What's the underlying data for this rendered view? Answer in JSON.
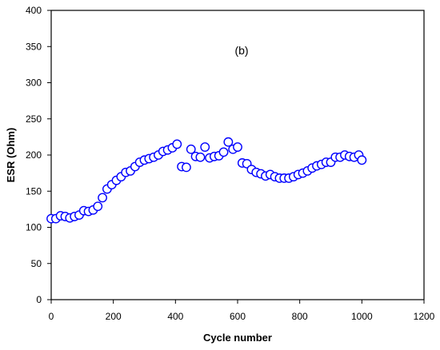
{
  "chart_data": {
    "type": "scatter",
    "title": "",
    "annotation": "(b)",
    "xlabel": "Cycle number",
    "ylabel": "ESR (Ohm)",
    "xlim": [
      0,
      1200
    ],
    "ylim": [
      0,
      400
    ],
    "xticks": [
      0,
      200,
      400,
      600,
      800,
      1000,
      1200
    ],
    "yticks": [
      0,
      50,
      100,
      150,
      200,
      250,
      300,
      350,
      400
    ],
    "grid": false,
    "marker": "open-circle",
    "marker_color": "#0000ff",
    "series": [
      {
        "x": [
          0,
          15,
          30,
          45,
          60,
          75,
          90,
          105,
          120,
          135,
          150,
          165,
          180,
          195,
          210,
          225,
          240,
          255,
          270,
          285,
          300,
          315,
          330,
          345,
          360,
          375,
          390,
          405,
          420,
          435,
          450,
          465,
          480,
          495,
          510,
          525,
          540,
          555,
          570,
          585,
          600,
          615,
          630,
          645,
          660,
          675,
          690,
          705,
          720,
          735,
          750,
          765,
          780,
          795,
          810,
          825,
          840,
          855,
          870,
          885,
          900,
          915,
          930,
          945,
          960,
          975,
          990,
          1000
        ],
        "y": [
          112,
          112,
          116,
          115,
          113,
          115,
          117,
          123,
          122,
          124,
          129,
          141,
          153,
          159,
          165,
          170,
          176,
          178,
          184,
          190,
          193,
          195,
          197,
          200,
          205,
          207,
          210,
          215,
          184,
          183,
          208,
          198,
          197,
          211,
          196,
          198,
          199,
          204,
          218,
          208,
          211,
          189,
          188,
          180,
          176,
          174,
          171,
          173,
          170,
          168,
          168,
          168,
          170,
          173,
          175,
          178,
          182,
          185,
          187,
          190,
          190,
          197,
          197,
          200,
          198,
          197,
          200,
          193
        ]
      }
    ]
  }
}
